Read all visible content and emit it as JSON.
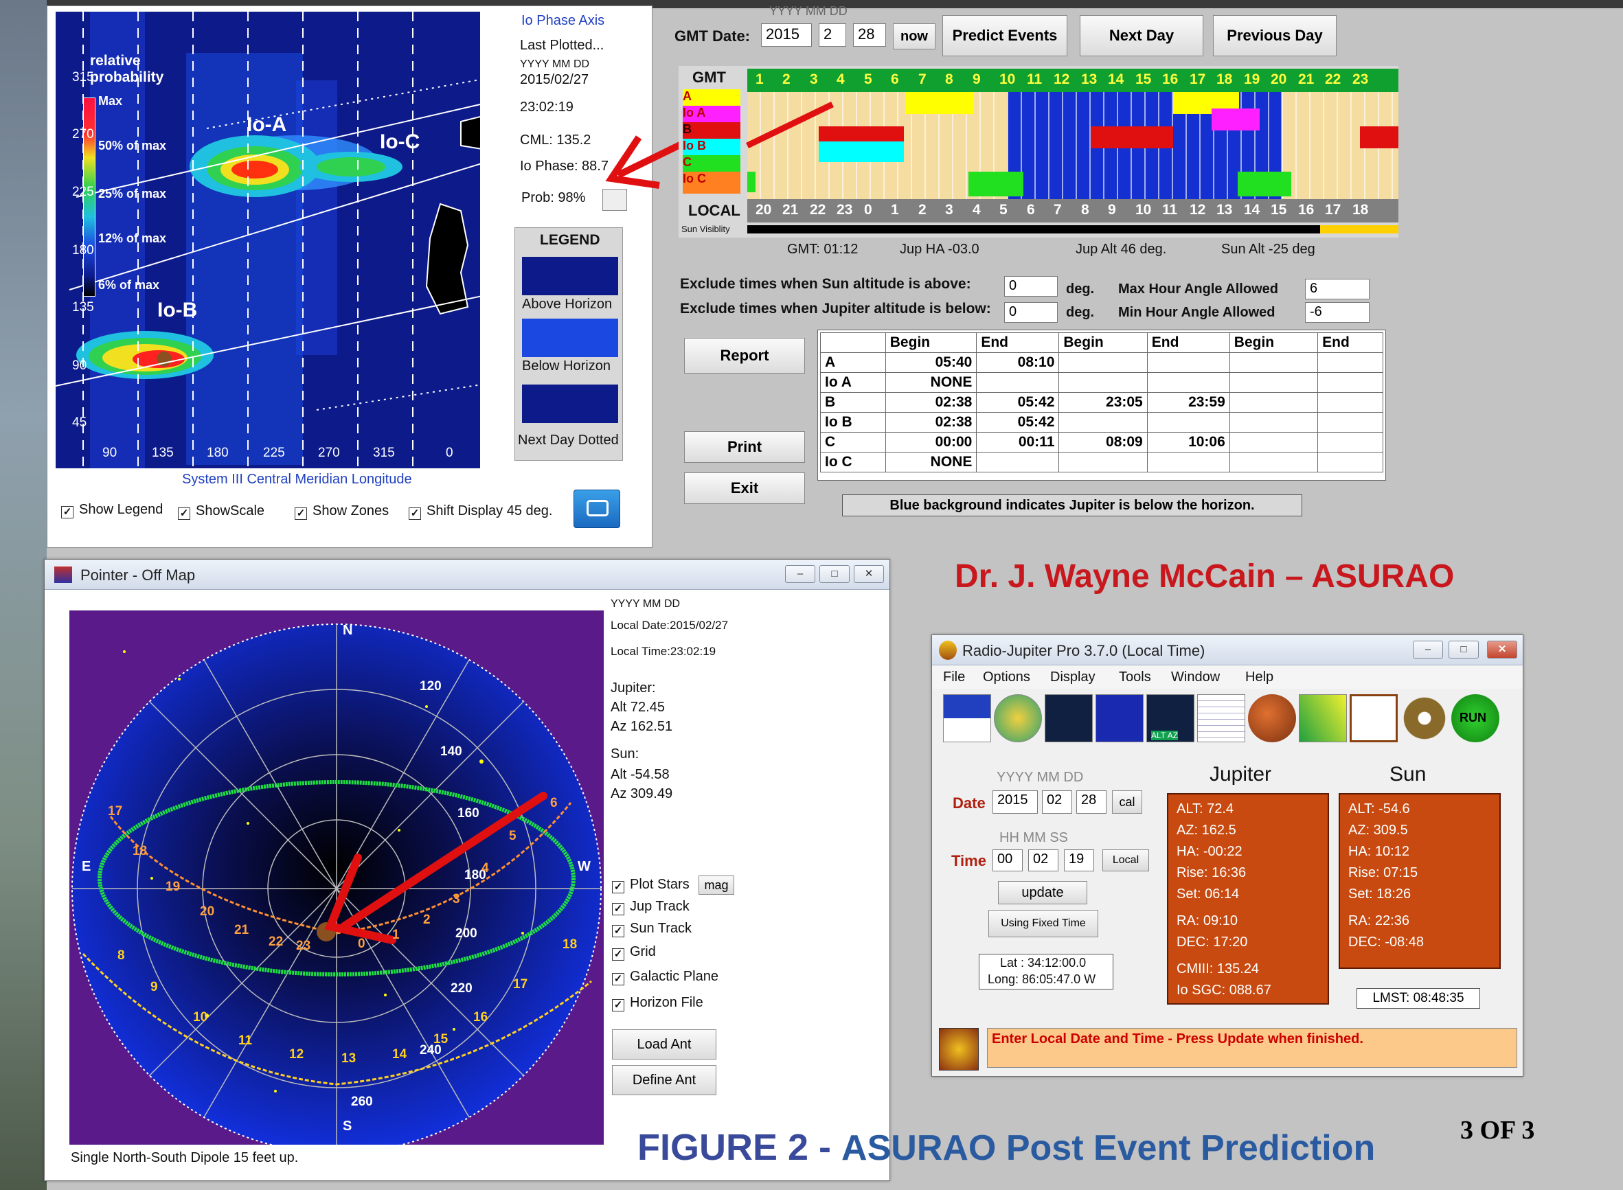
{
  "io_panel": {
    "title": "Io Phase Axis",
    "last_plotted": "Last Plotted...",
    "date_hint": "YYYY MM DD",
    "date": "2015/02/27",
    "time": "23:02:19",
    "cml": "CML: 135.2",
    "io_phase": "Io Phase: 88.7",
    "prob": "Prob: 98%",
    "legend_title": "LEGEND",
    "legend_items": [
      "Above Horizon",
      "Below Horizon",
      "Next Day Dotted"
    ],
    "x_label": "System III Central Meridian Longitude",
    "scale_title": "relative probability",
    "scale_items": [
      "Max",
      "50% of max",
      "25% of max",
      "12% of max",
      "6% of max"
    ],
    "y_ticks": [
      "315",
      "270",
      "225",
      "180",
      "135",
      "90",
      "45"
    ],
    "x_ticks": [
      "90",
      "135",
      "180",
      "225",
      "270",
      "315",
      "0"
    ],
    "region_labels": [
      "Io-A",
      "Io-C",
      "Io-B"
    ],
    "checkboxes": [
      "Show Legend",
      "ShowScale",
      "Show Zones",
      "Shift Display 45 deg."
    ]
  },
  "predict": {
    "date_hint": "YYYY MM DD",
    "gmt_date_label": "GMT Date:",
    "year": "2015",
    "month": "2",
    "day": "28",
    "now": "now",
    "predict_btn": "Predict Events",
    "next_btn": "Next Day",
    "prev_btn": "Previous Day",
    "gmt_label": "GMT",
    "gmt_hours": [
      "1",
      "2",
      "3",
      "4",
      "5",
      "6",
      "7",
      "8",
      "9",
      "10",
      "11",
      "12",
      "13",
      "14",
      "15",
      "16",
      "17",
      "18",
      "19",
      "20",
      "21",
      "22",
      "23"
    ],
    "local_label": "LOCAL",
    "local_hours": [
      "20",
      "21",
      "22",
      "23",
      "0",
      "1",
      "2",
      "3",
      "4",
      "5",
      "6",
      "7",
      "8",
      "9",
      "10",
      "11",
      "12",
      "13",
      "14",
      "15",
      "16",
      "17",
      "18"
    ],
    "row_labels": [
      "A",
      "Io A",
      "B",
      "Io B",
      "C",
      "Io C"
    ],
    "sun_visibility": "Sun Visiblity",
    "status": [
      "GMT: 01:12",
      "Jup HA -03.0",
      "Jup Alt 46 deg.",
      "Sun Alt -25 deg"
    ],
    "exclude_sun": "Exclude times when Sun altitude is above:",
    "exclude_sun_val": "0",
    "exclude_jup": "Exclude times when Jupiter altitude is below:",
    "exclude_jup_val": "0",
    "deg": "deg.",
    "max_ha": "Max Hour Angle Allowed",
    "max_ha_val": "6",
    "min_ha": "Min Hour Angle Allowed",
    "min_ha_val": "-6",
    "report_btn": "Report",
    "print_btn": "Print",
    "exit_btn": "Exit",
    "table_head": [
      "",
      "Begin",
      "End",
      "Begin",
      "End",
      "Begin",
      "End"
    ],
    "table_rows": [
      [
        "A",
        "05:40",
        "08:10",
        "",
        "",
        "",
        ""
      ],
      [
        "Io A",
        "NONE",
        "",
        "",
        "",
        "",
        ""
      ],
      [
        "B",
        "02:38",
        "05:42",
        "23:05",
        "23:59",
        "",
        ""
      ],
      [
        "Io B",
        "02:38",
        "05:42",
        "",
        "",
        "",
        ""
      ],
      [
        "C",
        "00:00",
        "00:11",
        "08:09",
        "10:06",
        "",
        ""
      ],
      [
        "Io C",
        "NONE",
        "",
        "",
        "",
        "",
        ""
      ]
    ],
    "note": "Blue background indicates Jupiter is below the horizon."
  },
  "pointer": {
    "title": "Pointer - Off Map",
    "date_hint": "YYYY MM DD",
    "local_date": "Local Date:2015/02/27",
    "local_time": "Local Time:23:02:19",
    "jupiter_label": "Jupiter:",
    "jup_alt": "Alt 72.45",
    "jup_az": "Az 162.51",
    "sun_label": "Sun:",
    "sun_alt": "Alt -54.58",
    "sun_az": "Az 309.49",
    "checks": [
      "Plot Stars",
      "Jup Track",
      "Sun Track",
      "Grid",
      "Galactic Plane",
      "Horizon File"
    ],
    "mag_btn": "mag",
    "load_ant": "Load Ant",
    "define_ant": "Define Ant",
    "footer": "Single North-South Dipole 15 feet up.",
    "compass": [
      "N",
      "S",
      "E",
      "W"
    ],
    "az_labels": [
      "120",
      "140",
      "160",
      "180",
      "200",
      "220",
      "240",
      "260"
    ],
    "jup_track_labels": [
      "17",
      "18",
      "19",
      "20",
      "21",
      "22",
      "23",
      "0",
      "1",
      "2",
      "3",
      "4",
      "5",
      "6"
    ],
    "sun_track_labels": [
      "8",
      "9",
      "10",
      "11",
      "12",
      "13",
      "14",
      "15",
      "16",
      "17",
      "18"
    ]
  },
  "credit": "Dr. J. Wayne McCain – ASURAO",
  "rj": {
    "title": "Radio-Jupiter Pro  3.7.0  (Local Time)",
    "menu": [
      "File",
      "Options",
      "Display",
      "Tools",
      "Window",
      "Help"
    ],
    "toolbar_alt_az": "ALT AZ",
    "toolbar_run": "RUN",
    "date_hint": "YYYY MM DD",
    "date_label": "Date",
    "year": "2015",
    "month": "02",
    "day": "28",
    "cal": "cal",
    "time_hint": "HH MM SS",
    "time_label": "Time",
    "hh": "00",
    "mm": "02",
    "ss": "19",
    "local": "Local",
    "update": "update",
    "fixed_time": "Using Fixed Time",
    "lat": "Lat : 34:12:00.0",
    "long": "Long: 86:05:47.0 W",
    "jupiter_head": "Jupiter",
    "sun_head": "Sun",
    "jup_vals": [
      "ALT: 72.4",
      "AZ: 162.5",
      "HA: -00:22",
      "Rise: 16:36",
      "Set: 06:14",
      "RA: 09:10",
      "DEC: 17:20",
      "CMIII:  135.24",
      "Io SGC: 088.67"
    ],
    "sun_vals": [
      "ALT: -54.6",
      "AZ: 309.5",
      "HA: 10:12",
      "Rise: 07:15",
      "Set: 18:26",
      "RA: 22:36",
      "DEC: -08:48"
    ],
    "lmst": "LMST: 08:48:35",
    "status": "Enter Local Date and Time  -  Press Update when finished."
  },
  "figure_caption_a": "FIGURE 2 - ",
  "figure_caption_b": "ASURAO Post Event Prediction",
  "page_num": "3 OF 3"
}
